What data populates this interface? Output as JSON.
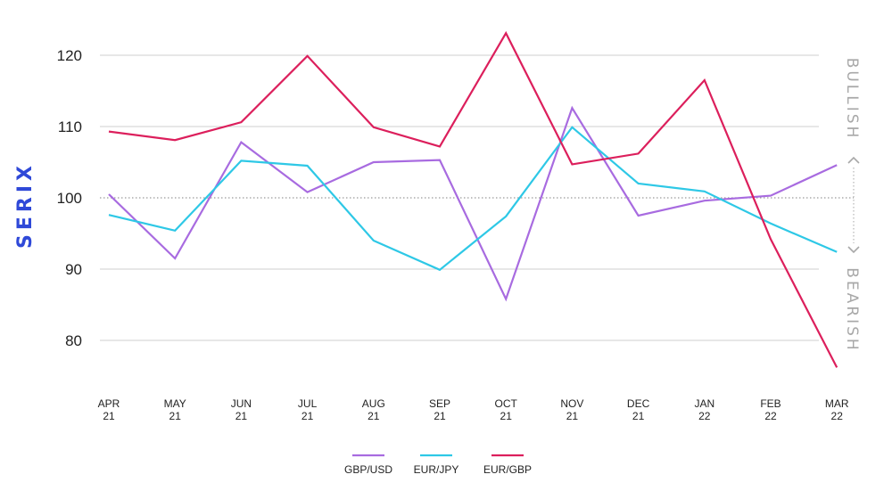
{
  "chart_data": {
    "type": "line",
    "ylabel": "SERIX",
    "categories": [
      {
        "month": "APR",
        "year": "21"
      },
      {
        "month": "MAY",
        "year": "21"
      },
      {
        "month": "JUN",
        "year": "21"
      },
      {
        "month": "JUL",
        "year": "21"
      },
      {
        "month": "AUG",
        "year": "21"
      },
      {
        "month": "SEP",
        "year": "21"
      },
      {
        "month": "OCT",
        "year": "21"
      },
      {
        "month": "NOV",
        "year": "21"
      },
      {
        "month": "DEC",
        "year": "21"
      },
      {
        "month": "JAN",
        "year": "22"
      },
      {
        "month": "FEB",
        "year": "22"
      },
      {
        "month": "MAR",
        "year": "22"
      }
    ],
    "yticks": [
      80,
      90,
      100,
      110,
      120
    ],
    "ylim": [
      74.5,
      124
    ],
    "reference_line": 100,
    "bullish_label": "BULLISH",
    "bearish_label": "BEARISH",
    "grid": true,
    "legend_position": "bottom",
    "series": [
      {
        "name": "GBP/USD",
        "color": "#a86be0",
        "values": [
          100.5,
          91.5,
          107.8,
          100.8,
          105.0,
          105.3,
          85.8,
          112.6,
          97.5,
          99.6,
          100.3,
          104.6
        ]
      },
      {
        "name": "EUR/JPY",
        "color": "#2ec8e6",
        "values": [
          97.6,
          95.4,
          105.2,
          104.5,
          94.0,
          89.9,
          97.4,
          109.9,
          102.0,
          100.9,
          96.4,
          92.4
        ]
      },
      {
        "name": "EUR/GBP",
        "color": "#dc1f5c",
        "values": [
          109.3,
          108.1,
          110.6,
          119.9,
          109.9,
          107.2,
          123.1,
          104.7,
          106.2,
          116.5,
          94.2,
          76.2
        ]
      }
    ]
  }
}
